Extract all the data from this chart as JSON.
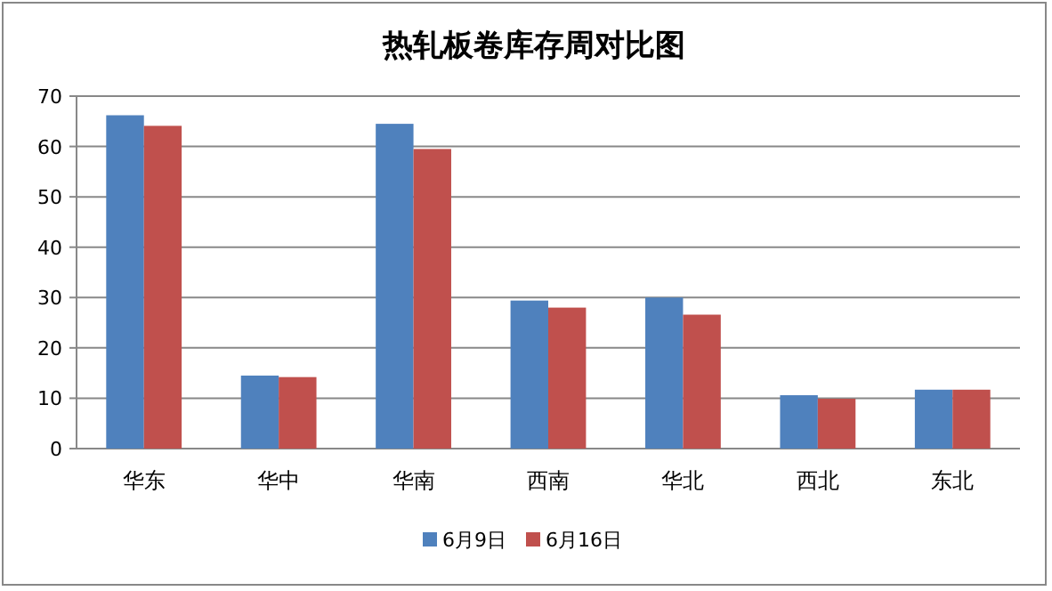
{
  "chart_data": {
    "type": "bar",
    "title": "热轧板卷库存周对比图",
    "categories": [
      "华东",
      "华中",
      "华南",
      "西南",
      "华北",
      "西北",
      "东北"
    ],
    "series": [
      {
        "name": "6月9日",
        "color": "#4f81bd",
        "values": [
          66.2,
          14.5,
          64.5,
          29.4,
          30.0,
          10.6,
          11.7
        ]
      },
      {
        "name": "6月16日",
        "color": "#c0504d",
        "values": [
          64.1,
          14.2,
          59.5,
          28.0,
          26.6,
          9.9,
          11.7
        ]
      }
    ],
    "ylim": [
      0,
      70
    ],
    "yticks": [
      0,
      10,
      20,
      30,
      40,
      50,
      60,
      70
    ],
    "grid": "y",
    "legend": "bottom"
  }
}
